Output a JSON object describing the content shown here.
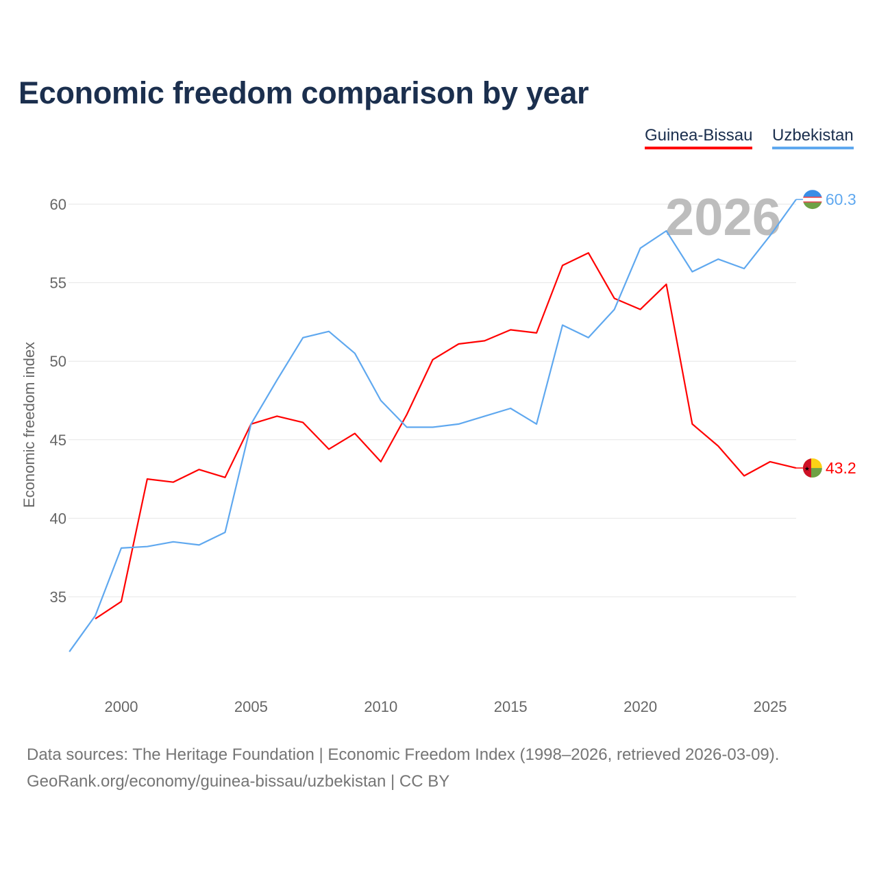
{
  "title": "Economic freedom comparison by year",
  "footer": {
    "line1": "Data sources: The Heritage Foundation | Economic Freedom Index (1998–2026, retrieved 2026-03-09).",
    "line2": "GeoRank.org/economy/guinea-bissau/uzbekistan | CC BY"
  },
  "chart_data": {
    "type": "line",
    "title": "Economic freedom comparison by year",
    "xlabel": "",
    "ylabel": "Economic freedom index",
    "xlim": [
      1998,
      2026
    ],
    "ylim": [
      30,
      62.5
    ],
    "xticks": [
      2000,
      2005,
      2010,
      2015,
      2020,
      2025
    ],
    "yticks": [
      35,
      40,
      45,
      50,
      55,
      60
    ],
    "grid": true,
    "legend_position": "top-right",
    "year_watermark": "2026",
    "series": [
      {
        "name": "Guinea-Bissau",
        "color": "#ff0000",
        "end_label": "43.2",
        "flag": "guinea-bissau-flag",
        "x": [
          1999,
          2000,
          2001,
          2002,
          2003,
          2004,
          2005,
          2006,
          2007,
          2008,
          2009,
          2010,
          2011,
          2012,
          2013,
          2014,
          2015,
          2016,
          2017,
          2018,
          2019,
          2020,
          2021,
          2022,
          2023,
          2024,
          2025,
          2026
        ],
        "values": [
          33.6,
          34.7,
          42.5,
          42.3,
          43.1,
          42.6,
          46.0,
          46.5,
          46.1,
          44.4,
          45.4,
          43.6,
          46.6,
          50.1,
          51.1,
          51.3,
          52.0,
          51.8,
          56.1,
          56.9,
          54.0,
          53.3,
          54.9,
          46.0,
          44.6,
          42.7,
          43.6,
          43.2
        ]
      },
      {
        "name": "Uzbekistan",
        "color": "#5fa8ef",
        "end_label": "60.3",
        "flag": "uzbekistan-flag",
        "x": [
          1998,
          1999,
          2000,
          2001,
          2002,
          2003,
          2004,
          2005,
          2006,
          2007,
          2008,
          2009,
          2010,
          2011,
          2012,
          2013,
          2014,
          2015,
          2016,
          2017,
          2018,
          2019,
          2020,
          2021,
          2022,
          2023,
          2024,
          2025,
          2026
        ],
        "values": [
          31.5,
          33.8,
          38.1,
          38.2,
          38.5,
          38.3,
          39.1,
          46.0,
          48.8,
          51.5,
          51.9,
          50.5,
          47.5,
          45.8,
          45.8,
          46.0,
          46.5,
          47.0,
          46.0,
          52.3,
          51.5,
          53.3,
          57.2,
          58.3,
          55.7,
          56.5,
          55.9,
          58.0,
          60.3
        ]
      }
    ]
  }
}
